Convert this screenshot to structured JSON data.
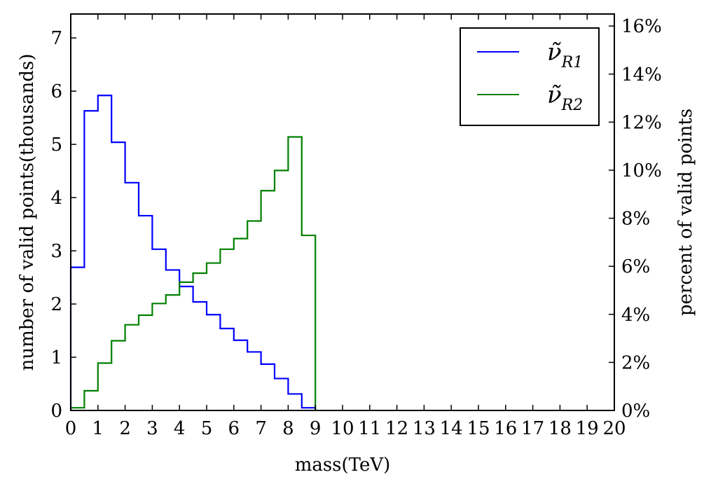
{
  "chart_data": {
    "type": "line",
    "step": true,
    "xlabel": "mass(TeV)",
    "ylabel": "number of valid points(thousands)",
    "ylabel_right": "percent of valid points",
    "xlim": [
      0,
      20
    ],
    "ylim": [
      0,
      7.45
    ],
    "ylim_right_percent": [
      0,
      16.5
    ],
    "x_ticks": [
      "0",
      "1",
      "2",
      "3",
      "4",
      "5",
      "6",
      "7",
      "8",
      "9",
      "10",
      "11",
      "12",
      "13",
      "14",
      "15",
      "16",
      "17",
      "18",
      "19",
      "20"
    ],
    "y_ticks": [
      "0",
      "1",
      "2",
      "3",
      "4",
      "5",
      "6",
      "7"
    ],
    "y_ticks_right": [
      "0%",
      "2%",
      "4%",
      "6%",
      "8%",
      "10%",
      "12%",
      "14%",
      "16%"
    ],
    "grid": false,
    "legend_position": "top-right",
    "bin_edges": [
      0,
      0.5,
      1,
      1.5,
      2,
      2.5,
      3,
      3.5,
      4,
      4.5,
      5,
      5.5,
      6,
      6.5,
      7,
      7.5,
      8,
      8.5,
      9
    ],
    "series": [
      {
        "name": "R1",
        "name_base": "ν̃",
        "color": "#0000ff",
        "values": [
          2.69,
          5.63,
          5.92,
          5.04,
          4.28,
          3.66,
          3.03,
          2.64,
          2.33,
          2.04,
          1.8,
          1.54,
          1.32,
          1.1,
          0.87,
          0.6,
          0.31,
          0.05
        ]
      },
      {
        "name": "R2",
        "name_base": "ν̃",
        "color": "#008000",
        "values": [
          0.05,
          0.37,
          0.89,
          1.31,
          1.61,
          1.79,
          2.01,
          2.17,
          2.41,
          2.58,
          2.77,
          3.03,
          3.23,
          3.56,
          4.13,
          4.51,
          5.14,
          3.29
        ]
      }
    ]
  }
}
